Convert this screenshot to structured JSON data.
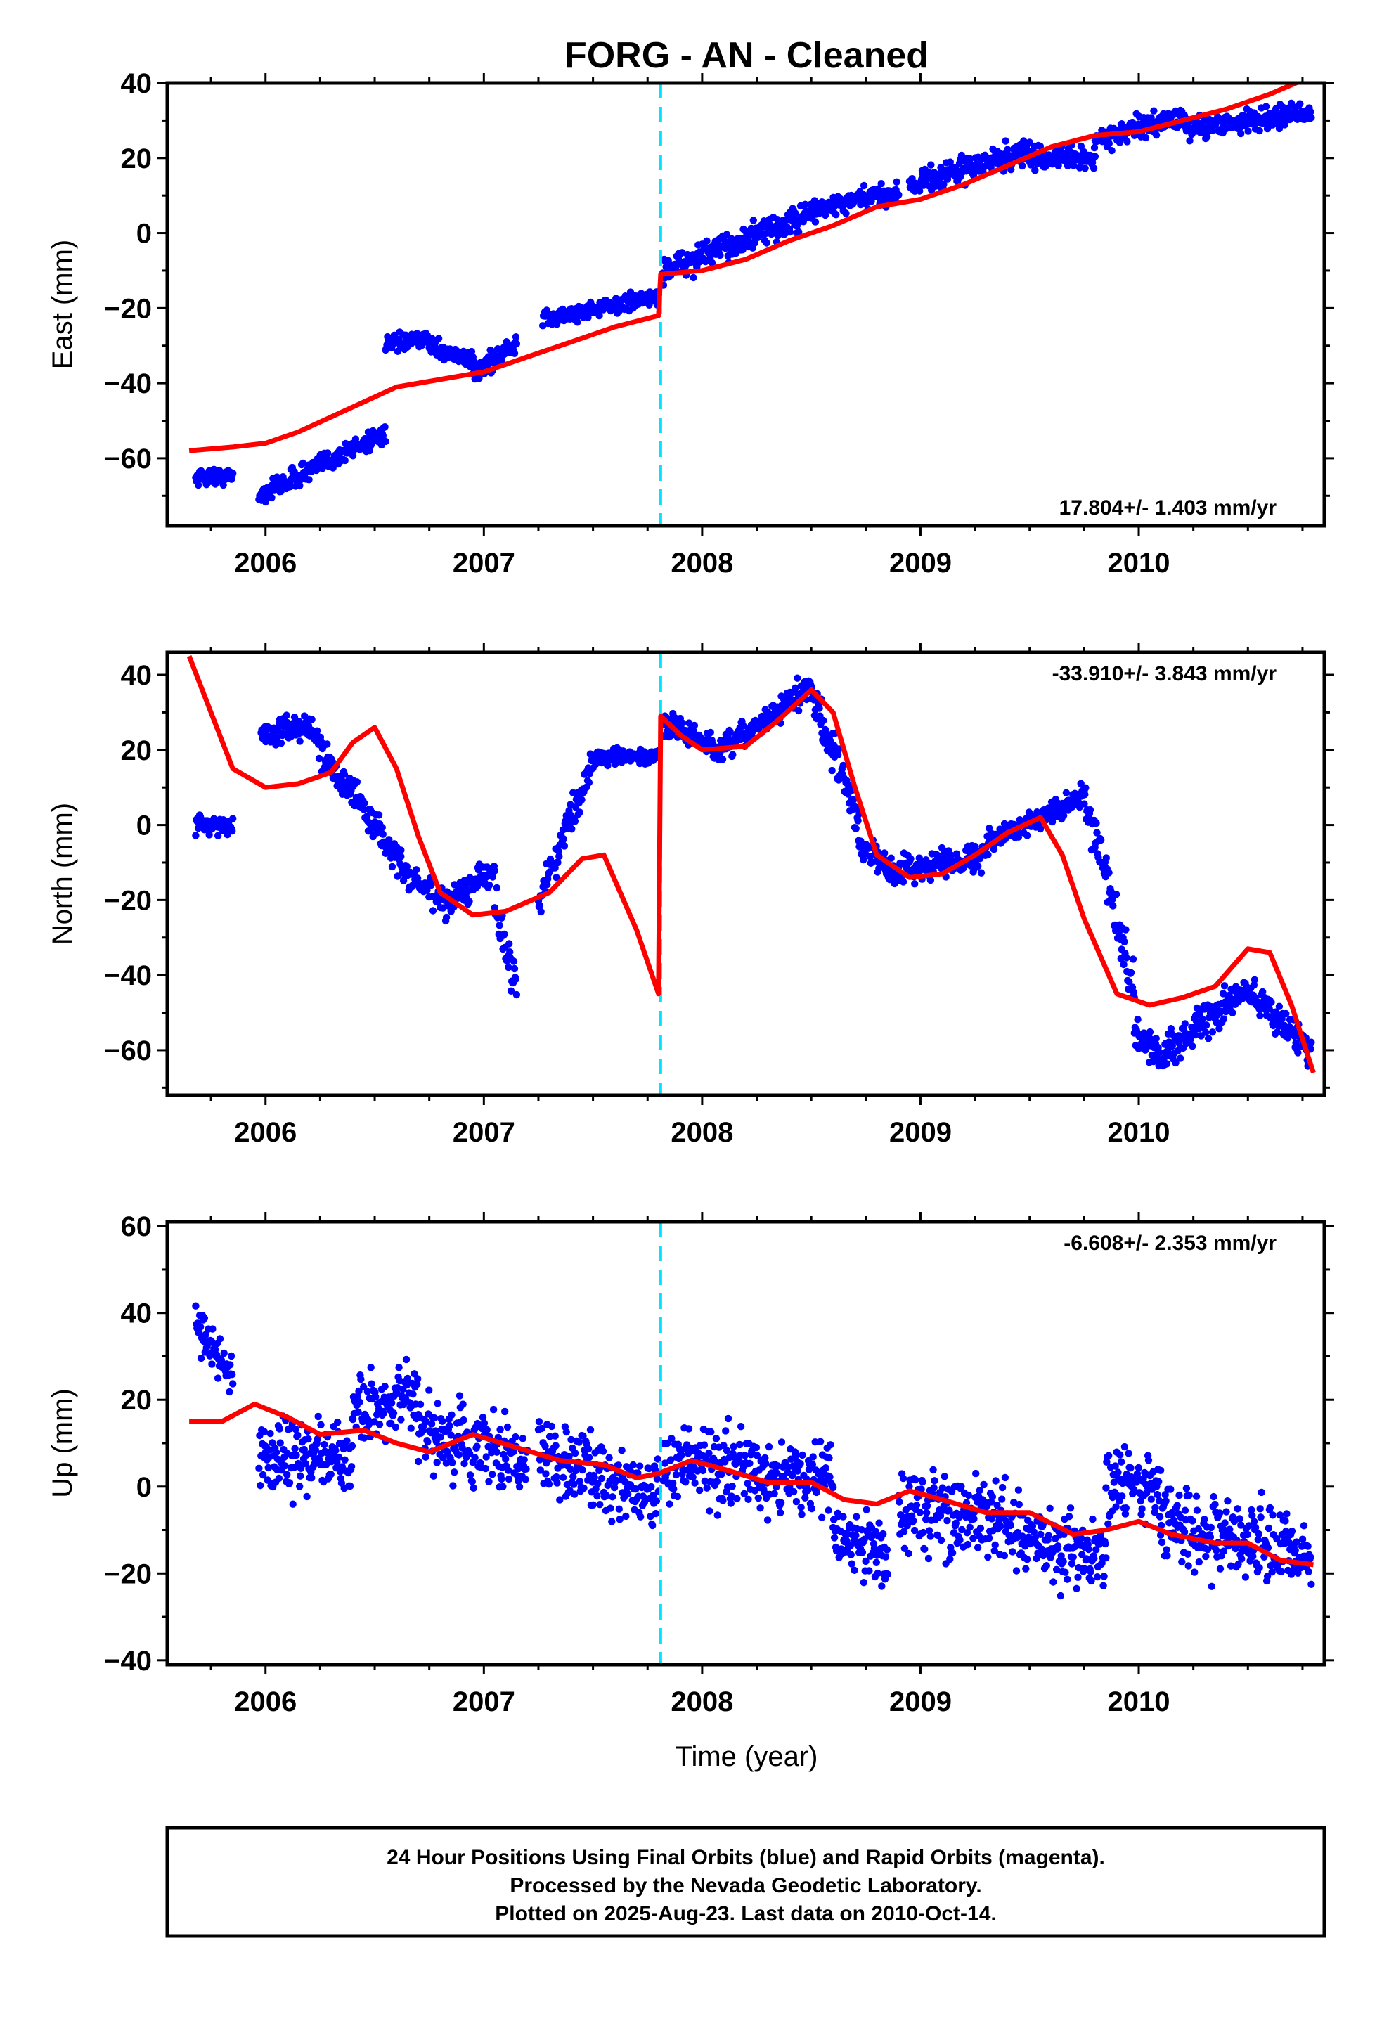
{
  "title": "FORG  - AN - Cleaned",
  "xlabel": "Time (year)",
  "footer": [
    "24 Hour Positions Using Final Orbits (blue) and Rapid Orbits (magenta).",
    "Processed by the Nevada Geodetic Laboratory.",
    "Plotted on 2025-Aug-23. Last data on 2010-Oct-14."
  ],
  "colors": {
    "data": "#0000ff",
    "model": "#ff0000",
    "offset": "#00e5ff",
    "frame": "#000000"
  },
  "chart_data": [
    {
      "type": "scatter",
      "ylabel": "East (mm)",
      "rate_label": "17.804+/- 1.403 mm/yr",
      "xlim": [
        2005.55,
        2010.85
      ],
      "ylim": [
        -78,
        40
      ],
      "yticks": [
        40,
        20,
        0,
        -20,
        -40,
        -60
      ],
      "xticks": [
        2006,
        2007,
        2008,
        2009,
        2010
      ],
      "offset_line_x": 2007.81,
      "segments": [
        {
          "x0": 2005.68,
          "x1": 2005.85,
          "start": -65,
          "end": -65,
          "noise": 1.5
        },
        {
          "x0": 2005.97,
          "x1": 2006.55,
          "start": -70,
          "end": -53,
          "noise": 2
        },
        {
          "x0": 2006.55,
          "x1": 2006.75,
          "start": -30,
          "end": -28,
          "noise": 1.5
        },
        {
          "x0": 2006.75,
          "x1": 2006.95,
          "start": -30,
          "end": -34,
          "noise": 1.5
        },
        {
          "x0": 2006.95,
          "x1": 2007.15,
          "start": -37,
          "end": -30,
          "noise": 2
        },
        {
          "x0": 2007.27,
          "x1": 2007.8,
          "start": -23,
          "end": -17,
          "noise": 1.5
        },
        {
          "x0": 2007.82,
          "x1": 2008.5,
          "start": -10,
          "end": 5,
          "noise": 2.5
        },
        {
          "x0": 2008.5,
          "x1": 2008.9,
          "start": 6,
          "end": 11,
          "noise": 2
        },
        {
          "x0": 2008.95,
          "x1": 2009.5,
          "start": 13,
          "end": 22,
          "noise": 2.5
        },
        {
          "x0": 2009.5,
          "x1": 2009.8,
          "start": 20,
          "end": 20,
          "noise": 2
        },
        {
          "x0": 2009.8,
          "x1": 2010.2,
          "start": 25,
          "end": 31,
          "noise": 2
        },
        {
          "x0": 2010.2,
          "x1": 2010.79,
          "start": 28,
          "end": 32,
          "noise": 2
        }
      ],
      "model": {
        "x": [
          2005.65,
          2005.85,
          2006.0,
          2006.15,
          2006.3,
          2006.45,
          2006.6,
          2006.8,
          2007.0,
          2007.2,
          2007.4,
          2007.6,
          2007.8,
          2007.81,
          2008.0,
          2008.2,
          2008.4,
          2008.6,
          2008.8,
          2009.0,
          2009.2,
          2009.4,
          2009.6,
          2009.8,
          2010.0,
          2010.2,
          2010.4,
          2010.6,
          2010.8
        ],
        "y": [
          -58,
          -57,
          -56,
          -53,
          -49,
          -45,
          -41,
          -39,
          -37,
          -33,
          -29,
          -25,
          -22,
          -11,
          -10,
          -7,
          -2,
          2,
          7,
          9,
          13,
          18,
          23,
          26,
          27,
          30,
          33,
          37,
          42
        ]
      }
    },
    {
      "type": "scatter",
      "ylabel": "North (mm)",
      "rate_label": "-33.910+/- 3.843 mm/yr",
      "xlim": [
        2005.55,
        2010.85
      ],
      "ylim": [
        -72,
        46
      ],
      "yticks": [
        40,
        20,
        0,
        -20,
        -40,
        -60
      ],
      "xticks": [
        2006,
        2007,
        2008,
        2009,
        2010
      ],
      "offset_line_x": 2007.81,
      "segments": [
        {
          "x0": 2005.68,
          "x1": 2005.85,
          "start": 1,
          "end": -1,
          "noise": 2
        },
        {
          "x0": 2005.98,
          "x1": 2006.2,
          "start": 24,
          "end": 27,
          "noise": 2.5
        },
        {
          "x0": 2006.2,
          "x1": 2006.62,
          "start": 25,
          "end": -10,
          "noise": 3
        },
        {
          "x0": 2006.62,
          "x1": 2006.85,
          "start": -12,
          "end": -22,
          "noise": 2.5
        },
        {
          "x0": 2006.85,
          "x1": 2007.05,
          "start": -20,
          "end": -12,
          "noise": 3
        },
        {
          "x0": 2007.05,
          "x1": 2007.15,
          "start": -20,
          "end": -45,
          "noise": 4
        },
        {
          "x0": 2007.25,
          "x1": 2007.5,
          "start": -20,
          "end": 17,
          "noise": 3
        },
        {
          "x0": 2007.5,
          "x1": 2007.8,
          "start": 18,
          "end": 18,
          "noise": 1.5
        },
        {
          "x0": 2007.82,
          "x1": 2008.1,
          "start": 28,
          "end": 19,
          "noise": 2.5
        },
        {
          "x0": 2008.1,
          "x1": 2008.5,
          "start": 20,
          "end": 37,
          "noise": 2.5
        },
        {
          "x0": 2008.5,
          "x1": 2008.72,
          "start": 36,
          "end": 0,
          "noise": 4
        },
        {
          "x0": 2008.72,
          "x1": 2008.9,
          "start": -5,
          "end": -13,
          "noise": 2.5
        },
        {
          "x0": 2008.9,
          "x1": 2009.3,
          "start": -12,
          "end": -8,
          "noise": 2.5
        },
        {
          "x0": 2009.3,
          "x1": 2009.75,
          "start": -5,
          "end": 8,
          "noise": 2
        },
        {
          "x0": 2009.75,
          "x1": 2009.98,
          "start": 8,
          "end": -45,
          "noise": 5
        },
        {
          "x0": 2009.98,
          "x1": 2010.12,
          "start": -55,
          "end": -63,
          "noise": 3
        },
        {
          "x0": 2010.12,
          "x1": 2010.5,
          "start": -60,
          "end": -44,
          "noise": 3
        },
        {
          "x0": 2010.5,
          "x1": 2010.79,
          "start": -44,
          "end": -60,
          "noise": 3
        }
      ],
      "model": {
        "x": [
          2005.65,
          2005.75,
          2005.85,
          2006.0,
          2006.15,
          2006.3,
          2006.4,
          2006.5,
          2006.6,
          2006.7,
          2006.8,
          2006.95,
          2007.1,
          2007.3,
          2007.45,
          2007.55,
          2007.7,
          2007.8,
          2007.81,
          2007.9,
          2008.0,
          2008.2,
          2008.35,
          2008.5,
          2008.6,
          2008.7,
          2008.8,
          2008.95,
          2009.1,
          2009.25,
          2009.4,
          2009.55,
          2009.65,
          2009.75,
          2009.9,
          2010.05,
          2010.2,
          2010.35,
          2010.5,
          2010.6,
          2010.7,
          2010.8
        ],
        "y": [
          45,
          30,
          15,
          10,
          11,
          14,
          22,
          26,
          15,
          -3,
          -18,
          -24,
          -23,
          -18,
          -9,
          -8,
          -28,
          -45,
          29,
          24,
          20,
          21,
          28,
          36,
          30,
          10,
          -8,
          -14,
          -13,
          -8,
          -2,
          2,
          -8,
          -25,
          -45,
          -48,
          -46,
          -43,
          -33,
          -34,
          -48,
          -66
        ]
      }
    },
    {
      "type": "scatter",
      "ylabel": "Up (mm)",
      "rate_label": "-6.608+/- 2.353 mm/yr",
      "xlim": [
        2005.55,
        2010.85
      ],
      "ylim": [
        -41,
        61
      ],
      "yticks": [
        60,
        40,
        20,
        0,
        -20,
        -40
      ],
      "xticks": [
        2006,
        2007,
        2008,
        2009,
        2010
      ],
      "offset_line_x": 2007.81,
      "segments": [
        {
          "x0": 2005.68,
          "x1": 2005.85,
          "start": 38,
          "end": 25,
          "noise": 4
        },
        {
          "x0": 2005.97,
          "x1": 2006.4,
          "start": 8,
          "end": 6,
          "noise": 6
        },
        {
          "x0": 2006.4,
          "x1": 2006.7,
          "start": 18,
          "end": 20,
          "noise": 5
        },
        {
          "x0": 2006.7,
          "x1": 2007.2,
          "start": 12,
          "end": 6,
          "noise": 6
        },
        {
          "x0": 2007.25,
          "x1": 2007.8,
          "start": 8,
          "end": -2,
          "noise": 6
        },
        {
          "x0": 2007.82,
          "x1": 2008.3,
          "start": 5,
          "end": 4,
          "noise": 6
        },
        {
          "x0": 2008.3,
          "x1": 2008.6,
          "start": 3,
          "end": 2,
          "noise": 6
        },
        {
          "x0": 2008.6,
          "x1": 2008.85,
          "start": -12,
          "end": -15,
          "noise": 5
        },
        {
          "x0": 2008.9,
          "x1": 2009.4,
          "start": -5,
          "end": -8,
          "noise": 7
        },
        {
          "x0": 2009.4,
          "x1": 2009.85,
          "start": -12,
          "end": -15,
          "noise": 6
        },
        {
          "x0": 2009.85,
          "x1": 2010.1,
          "start": 0,
          "end": 0,
          "noise": 6
        },
        {
          "x0": 2010.1,
          "x1": 2010.79,
          "start": -8,
          "end": -16,
          "noise": 6
        }
      ],
      "model": {
        "x": [
          2005.65,
          2005.8,
          2005.95,
          2006.1,
          2006.25,
          2006.45,
          2006.6,
          2006.75,
          2006.95,
          2007.15,
          2007.35,
          2007.55,
          2007.7,
          2007.8,
          2007.95,
          2008.1,
          2008.3,
          2008.5,
          2008.65,
          2008.8,
          2008.95,
          2009.1,
          2009.3,
          2009.5,
          2009.7,
          2009.85,
          2010.0,
          2010.15,
          2010.35,
          2010.5,
          2010.65,
          2010.8
        ],
        "y": [
          15,
          15,
          19,
          16,
          12,
          13,
          10,
          8,
          12,
          9,
          6,
          5,
          2,
          3,
          6,
          4,
          1,
          1,
          -3,
          -4,
          -1,
          -3,
          -6,
          -6,
          -11,
          -10,
          -8,
          -11,
          -13,
          -13,
          -17,
          -18
        ]
      }
    }
  ]
}
